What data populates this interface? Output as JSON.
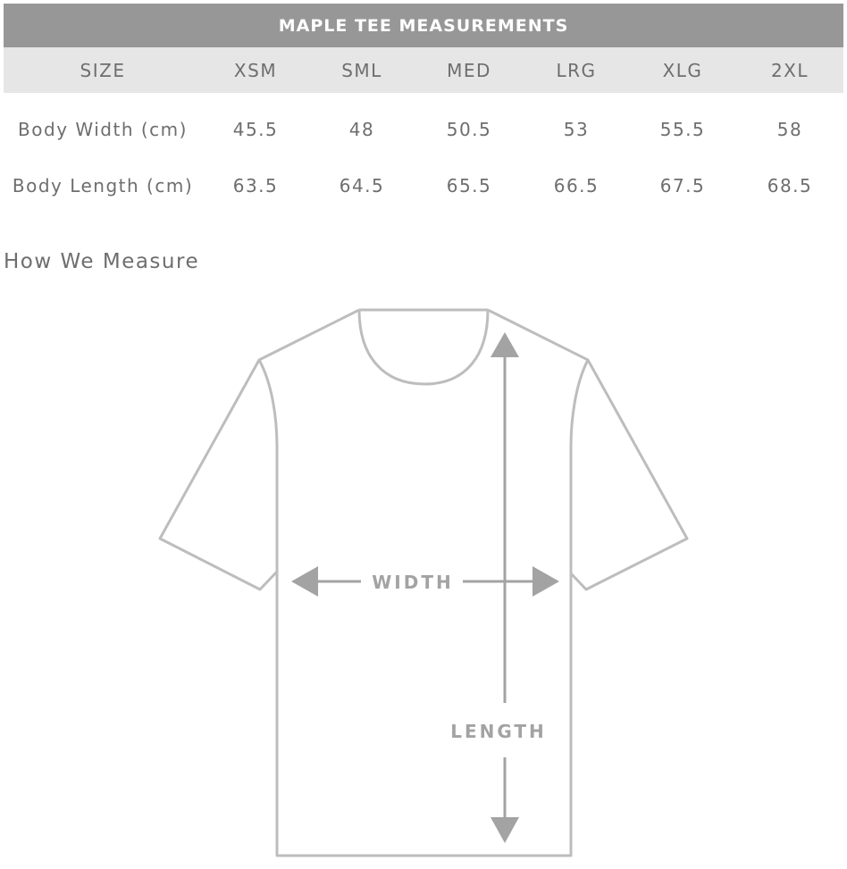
{
  "table": {
    "title": "MAPLE TEE MEASUREMENTS",
    "header": [
      "SIZE",
      "XSM",
      "SML",
      "MED",
      "LRG",
      "XLG",
      "2XL"
    ],
    "rows": [
      [
        "Body Width (cm)",
        "45.5",
        "48",
        "50.5",
        "53",
        "55.5",
        "58"
      ],
      [
        "Body Length (cm)",
        "63.5",
        "64.5",
        "65.5",
        "66.5",
        "67.5",
        "68.5"
      ]
    ]
  },
  "diagram": {
    "heading": "How We Measure",
    "width_label": "WIDTH",
    "length_label": "LENGTH",
    "outline_color": "#bdbdbd",
    "arrow_color": "#a3a3a3",
    "icon": "t-shirt-outline"
  }
}
